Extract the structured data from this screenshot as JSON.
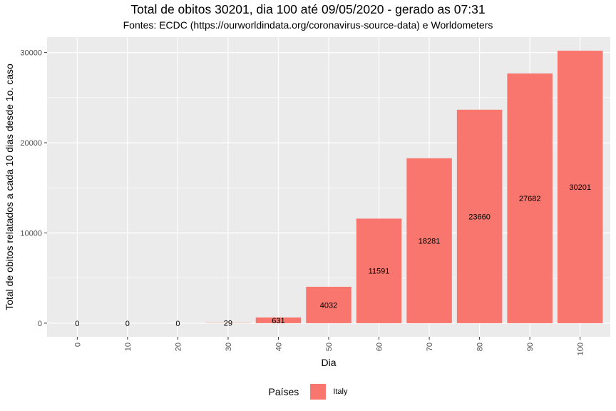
{
  "chart_data": {
    "type": "bar",
    "title": "Total de obitos 30201, dia 100 até 09/05/2020 - gerado as 07:31",
    "subtitle": "Fontes: ECDC (https://ourworldindata.org/coronavirus-source-data) e Worldometers",
    "xlabel": "Dia",
    "ylabel": "Total de obitos relatados a cada 10 dias desde 1o. caso",
    "categories": [
      0,
      10,
      20,
      30,
      40,
      50,
      60,
      70,
      80,
      90,
      100
    ],
    "series": [
      {
        "name": "Italy",
        "color": "#f8766d",
        "values": [
          0,
          0,
          0,
          29,
          631,
          4032,
          11591,
          18281,
          23660,
          27682,
          30201
        ]
      }
    ],
    "y_ticks": [
      0,
      10000,
      20000,
      30000
    ],
    "ylim": [
      -1510,
      31711
    ],
    "grid": true,
    "legend": {
      "title": "Países",
      "position": "bottom",
      "entries": [
        "Italy"
      ]
    },
    "colors": {
      "bar": "#f8766d",
      "panel": "#ebebeb",
      "grid": "#ffffff"
    }
  }
}
